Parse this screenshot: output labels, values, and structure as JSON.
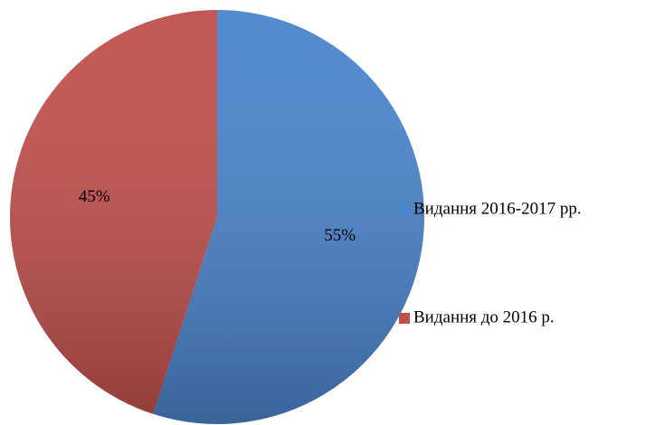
{
  "chart_data": {
    "type": "pie",
    "categories": [
      "Видання 2016-2017 рр.",
      "Видання до 2016 р."
    ],
    "values": [
      55,
      45
    ],
    "value_labels": [
      "55%",
      "45%"
    ],
    "colors": [
      "#4a84cc",
      "#c0504d"
    ],
    "legend": "right"
  }
}
